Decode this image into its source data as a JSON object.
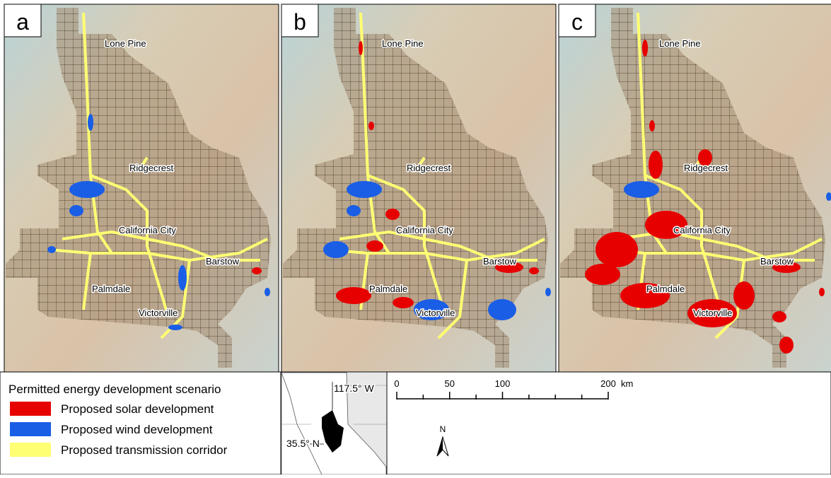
{
  "panels": [
    {
      "label": "a",
      "cities": [
        "Lone Pine",
        "Ridgecrest",
        "California City",
        "Barstow",
        "Palmdale",
        "Victorville"
      ]
    },
    {
      "label": "b",
      "cities": [
        "Lone Pine",
        "Ridgecrest",
        "California City",
        "Barstow",
        "Palmdale",
        "Victorville"
      ]
    },
    {
      "label": "c",
      "cities": [
        "Lone Pine",
        "Ridgecrest",
        "California City",
        "Barstow",
        "Palmdale",
        "Victorville"
      ]
    }
  ],
  "legend": {
    "title": "Permitted energy development scenario",
    "items": [
      {
        "label": "Proposed solar development",
        "color": "#e60000"
      },
      {
        "label": "Proposed wind development",
        "color": "#1a5ee6"
      },
      {
        "label": "Proposed transmission corridor",
        "color": "#ffff73"
      }
    ]
  },
  "inset": {
    "lon_label": "117.5° W",
    "lat_label": "35.5° N"
  },
  "scale_bar": {
    "ticks": [
      0,
      50,
      100,
      200
    ],
    "minor_ticks": [
      25,
      75,
      125,
      150,
      175
    ],
    "unit": "km"
  },
  "north_label": "N"
}
